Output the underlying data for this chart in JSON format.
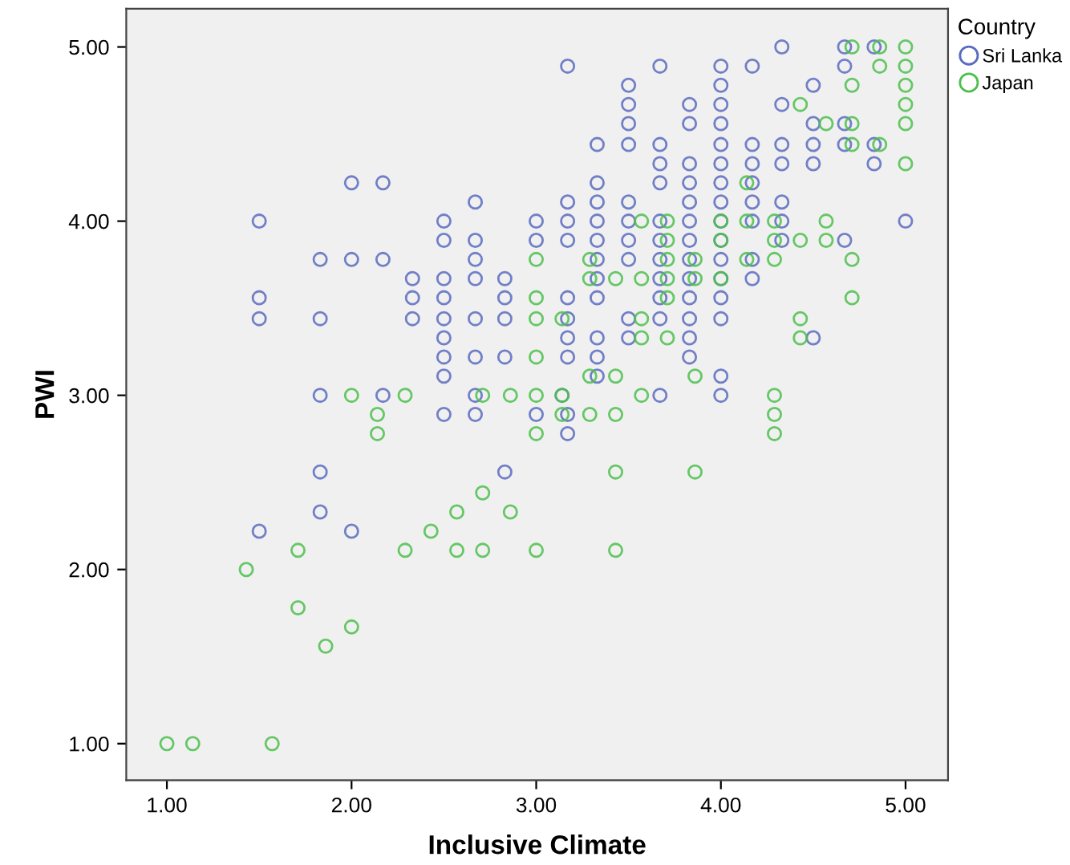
{
  "chart_data": {
    "type": "scatter",
    "xlabel": "Inclusive Climate",
    "ylabel": "PWI",
    "legend_title": "Country",
    "legend": "top right",
    "marker": "circle",
    "grid": false,
    "xlim": [
      0.78,
      5.23
    ],
    "ylim": [
      0.79,
      5.22
    ],
    "xticks": [
      {
        "value": 1,
        "label": "1.00"
      },
      {
        "value": 2,
        "label": "2.00"
      },
      {
        "value": 3,
        "label": "3.00"
      },
      {
        "value": 4,
        "label": "4.00"
      },
      {
        "value": 5,
        "label": "5.00"
      }
    ],
    "yticks": [
      {
        "value": 1,
        "label": "1.00"
      },
      {
        "value": 2,
        "label": "2.00"
      },
      {
        "value": 3,
        "label": "3.00"
      },
      {
        "value": 4,
        "label": "4.00"
      },
      {
        "value": 5,
        "label": "5.00"
      }
    ],
    "series": [
      {
        "name": "Sri Lanka",
        "color": "#5a6bbf",
        "x": [
          4.33,
          4.67,
          4.83,
          3.17,
          3.67,
          4.0,
          4.17,
          4.67,
          3.5,
          4.0,
          4.5,
          3.5,
          3.83,
          4.0,
          4.33,
          3.5,
          3.83,
          4.0,
          4.5,
          4.67,
          3.33,
          3.5,
          3.67,
          4.0,
          4.17,
          4.33,
          4.5,
          4.67,
          4.83,
          3.67,
          3.83,
          4.0,
          4.17,
          4.33,
          4.5,
          4.83,
          2.0,
          2.17,
          3.33,
          3.67,
          3.83,
          4.0,
          4.17,
          2.67,
          3.17,
          3.33,
          3.5,
          3.83,
          4.0,
          4.17,
          4.33,
          1.5,
          2.5,
          3.0,
          3.17,
          3.33,
          3.5,
          3.67,
          3.83,
          4.0,
          4.17,
          4.33,
          5.0,
          2.5,
          2.67,
          3.0,
          3.17,
          3.33,
          3.5,
          3.67,
          3.83,
          4.0,
          4.33,
          4.67,
          1.83,
          2.0,
          2.17,
          2.67,
          3.33,
          3.5,
          3.67,
          3.83,
          4.0,
          4.17,
          2.33,
          2.5,
          2.67,
          2.83,
          3.33,
          3.67,
          3.83,
          4.0,
          4.17,
          1.5,
          2.33,
          2.5,
          2.83,
          3.17,
          3.33,
          3.67,
          3.83,
          4.0,
          1.5,
          1.83,
          2.33,
          2.5,
          2.67,
          2.83,
          3.17,
          3.5,
          3.67,
          3.83,
          4.0,
          2.5,
          3.17,
          3.33,
          3.5,
          3.83,
          4.5,
          2.5,
          2.67,
          2.83,
          3.17,
          3.33,
          3.83,
          2.5,
          3.33,
          4.0,
          1.83,
          2.17,
          2.67,
          3.14,
          3.67,
          4.0,
          2.5,
          2.67,
          3.0,
          3.17,
          3.17,
          1.83,
          2.83,
          1.83,
          1.5,
          2.0
        ],
        "values": [
          5.0,
          5.0,
          5.0,
          4.89,
          4.89,
          4.89,
          4.89,
          4.89,
          4.78,
          4.78,
          4.78,
          4.67,
          4.67,
          4.67,
          4.67,
          4.56,
          4.56,
          4.56,
          4.56,
          4.56,
          4.44,
          4.44,
          4.44,
          4.44,
          4.44,
          4.44,
          4.44,
          4.44,
          4.44,
          4.33,
          4.33,
          4.33,
          4.33,
          4.33,
          4.33,
          4.33,
          4.22,
          4.22,
          4.22,
          4.22,
          4.22,
          4.22,
          4.22,
          4.11,
          4.11,
          4.11,
          4.11,
          4.11,
          4.11,
          4.11,
          4.11,
          4.0,
          4.0,
          4.0,
          4.0,
          4.0,
          4.0,
          4.0,
          4.0,
          4.0,
          4.0,
          4.0,
          4.0,
          3.89,
          3.89,
          3.89,
          3.89,
          3.89,
          3.89,
          3.89,
          3.89,
          3.89,
          3.89,
          3.89,
          3.78,
          3.78,
          3.78,
          3.78,
          3.78,
          3.78,
          3.78,
          3.78,
          3.78,
          3.78,
          3.67,
          3.67,
          3.67,
          3.67,
          3.67,
          3.67,
          3.67,
          3.67,
          3.67,
          3.56,
          3.56,
          3.56,
          3.56,
          3.56,
          3.56,
          3.56,
          3.56,
          3.56,
          3.44,
          3.44,
          3.44,
          3.44,
          3.44,
          3.44,
          3.44,
          3.44,
          3.44,
          3.44,
          3.44,
          3.33,
          3.33,
          3.33,
          3.33,
          3.33,
          3.33,
          3.22,
          3.22,
          3.22,
          3.22,
          3.22,
          3.22,
          3.11,
          3.11,
          3.11,
          3.0,
          3.0,
          3.0,
          3.0,
          3.0,
          3.0,
          2.89,
          2.89,
          2.89,
          2.89,
          2.78,
          2.56,
          2.56,
          2.33,
          2.22,
          2.22
        ]
      },
      {
        "name": "Japan",
        "color": "#4cbf4c",
        "x": [
          4.71,
          4.86,
          5.0,
          4.86,
          5.0,
          4.71,
          5.0,
          4.43,
          5.0,
          4.57,
          4.71,
          5.0,
          4.71,
          4.86,
          5.0,
          4.14,
          3.57,
          3.71,
          4.0,
          4.14,
          4.29,
          4.57,
          3.71,
          4.0,
          4.29,
          4.43,
          4.57,
          3.0,
          3.29,
          3.71,
          3.86,
          4.14,
          4.29,
          4.71,
          3.29,
          3.43,
          3.57,
          3.71,
          3.86,
          4.0,
          3.0,
          3.71,
          4.71,
          3.0,
          3.14,
          3.57,
          4.43,
          3.57,
          3.71,
          4.43,
          3.0,
          3.29,
          3.43,
          3.86,
          2.0,
          2.29,
          2.71,
          2.86,
          3.0,
          3.14,
          3.57,
          4.29,
          2.14,
          3.14,
          3.29,
          3.43,
          4.29,
          2.14,
          3.0,
          4.29,
          3.43,
          3.86,
          2.71,
          2.57,
          2.86,
          2.43,
          1.71,
          2.29,
          2.57,
          2.71,
          3.0,
          3.43,
          1.43,
          1.71,
          2.0,
          1.86,
          1.0,
          1.14,
          1.57
        ],
        "values": [
          5.0,
          5.0,
          5.0,
          4.89,
          4.89,
          4.78,
          4.78,
          4.67,
          4.67,
          4.56,
          4.56,
          4.56,
          4.44,
          4.44,
          4.33,
          4.22,
          4.0,
          4.0,
          4.0,
          4.0,
          4.0,
          4.0,
          3.89,
          3.89,
          3.89,
          3.89,
          3.89,
          3.78,
          3.78,
          3.78,
          3.78,
          3.78,
          3.78,
          3.78,
          3.67,
          3.67,
          3.67,
          3.67,
          3.67,
          3.67,
          3.56,
          3.56,
          3.56,
          3.44,
          3.44,
          3.44,
          3.44,
          3.33,
          3.33,
          3.33,
          3.22,
          3.11,
          3.11,
          3.11,
          3.0,
          3.0,
          3.0,
          3.0,
          3.0,
          3.0,
          3.0,
          3.0,
          2.89,
          2.89,
          2.89,
          2.89,
          2.89,
          2.78,
          2.78,
          2.78,
          2.56,
          2.56,
          2.44,
          2.33,
          2.33,
          2.22,
          2.11,
          2.11,
          2.11,
          2.11,
          2.11,
          2.11,
          2.0,
          1.78,
          1.67,
          1.56,
          1.0,
          1.0,
          1.0
        ]
      }
    ]
  }
}
